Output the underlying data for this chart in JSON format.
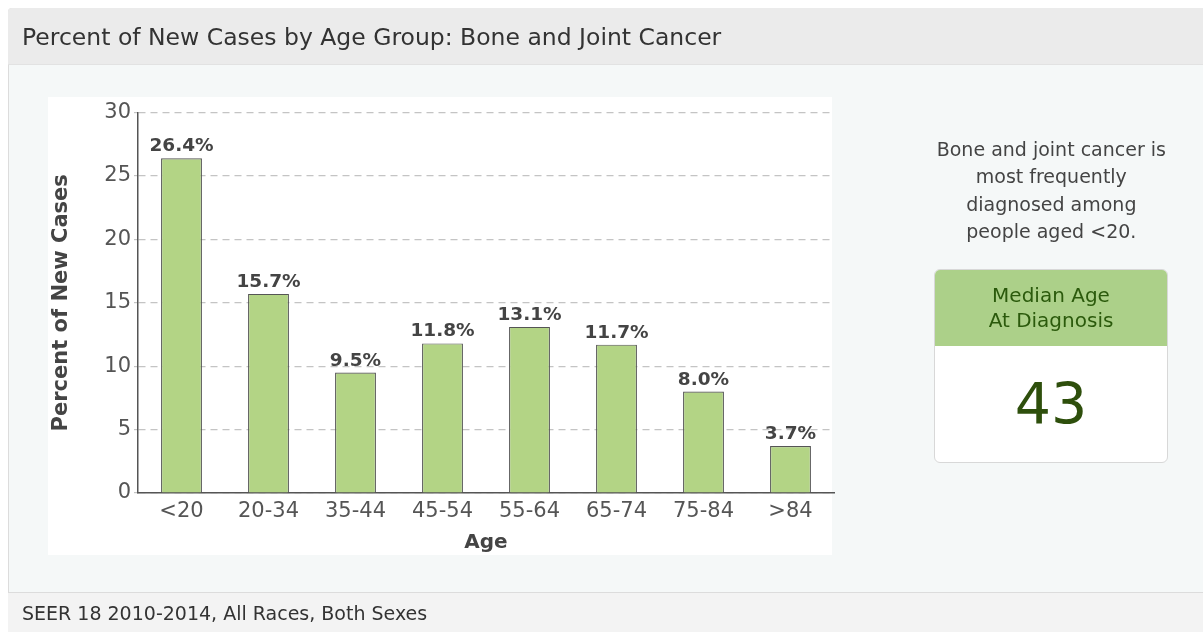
{
  "chart_data": [
    {
      "type": "bar",
      "title": "Percent of New Cases by Age Group: Bone and Joint Cancer",
      "xlabel": "Age",
      "ylabel": "Percent of New Cases",
      "categories": [
        "<20",
        "20-34",
        "35-44",
        "45-54",
        "55-64",
        "65-74",
        "75-84",
        ">84"
      ],
      "values": [
        26.4,
        15.7,
        9.5,
        11.8,
        13.1,
        11.7,
        8.0,
        3.7
      ],
      "color": "#b3d485",
      "value_labels": [
        "26.4%",
        "15.7%",
        "9.5%",
        "11.8%",
        "13.1%",
        "11.7%",
        "8.0%",
        "3.7%"
      ],
      "ylim": [
        0,
        30
      ],
      "yticks": [
        0,
        5,
        10,
        15,
        20,
        25,
        30
      ],
      "grid": "y",
      "annotations": [
        "SEER 18 2010-2014, All Races, Both Sexes"
      ]
    },
    {
      "type": "other",
      "title": "Median Age At Diagnosis",
      "annotations": [
        "Bone and joint cancer is most frequently diagnosed among people aged <20.",
        "43"
      ]
    }
  ]
}
